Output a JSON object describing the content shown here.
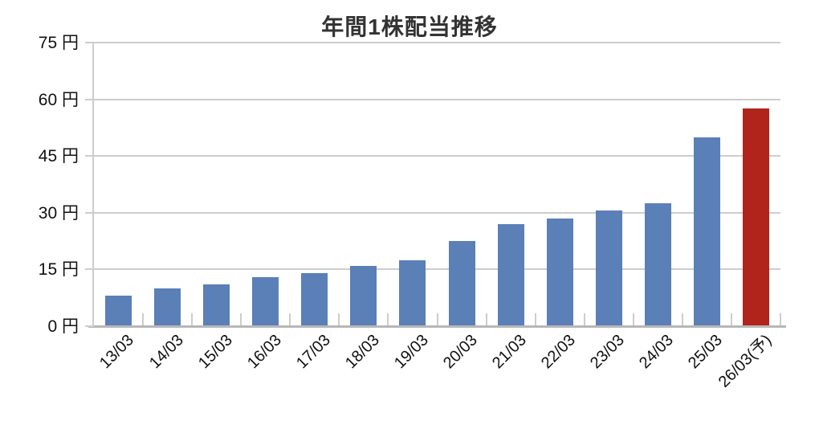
{
  "title": "年間1株配当推移",
  "chart_data": {
    "type": "bar",
    "title": "年間1株配当推移",
    "categories": [
      "13/03",
      "14/03",
      "15/03",
      "16/03",
      "17/03",
      "18/03",
      "19/03",
      "20/03",
      "21/03",
      "22/03",
      "23/03",
      "24/03",
      "25/03",
      "26/03(予)"
    ],
    "values": [
      8,
      10,
      11,
      13,
      14,
      16,
      17.5,
      22.5,
      27,
      28.5,
      30.5,
      32.5,
      50,
      57.5
    ],
    "unit": "円",
    "ytick_values": [
      0,
      15,
      30,
      45,
      60,
      75
    ],
    "ytick_labels": [
      "0 円",
      "15 円",
      "30 円",
      "45 円",
      "60 円",
      "75 円"
    ],
    "ylim": [
      0,
      75
    ],
    "grid": true,
    "legend": "none",
    "bar_color_default": "#5b7fb7",
    "bar_color_highlight": "#b0241b",
    "highlight_index": 13,
    "gridline_color": "#cdcdcd",
    "axis_color": "#b7b7b7",
    "xlabel_rotation_deg": -45
  }
}
